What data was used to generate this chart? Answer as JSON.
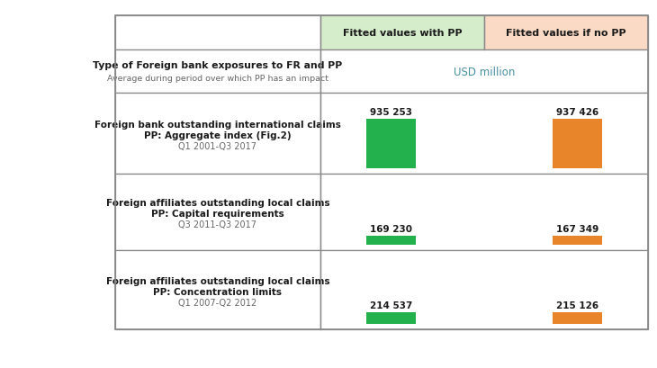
{
  "header_col1_bold": "Type of Foreign bank exposures to FR and PP",
  "header_col1_sub": "Average during period over which PP has an impact",
  "header_col2": "Fitted values with PP",
  "header_col3": "Fitted values if no PP",
  "subheader": "USD million",
  "rows": [
    {
      "label_bold1": "Foreign bank outstanding international claims",
      "label_bold2": "PP: Aggregate index (Fig.2)",
      "label_sub": "Q1 2001-Q3 2017",
      "val_with_pp": 935253,
      "val_no_pp": 937426,
      "val_with_pp_str": "935 253",
      "val_no_pp_str": "937 426"
    },
    {
      "label_bold1": "Foreign affiliates outstanding local claims",
      "label_bold2": "PP: Capital requirements",
      "label_sub": "Q3 2011-Q3 2017",
      "val_with_pp": 169230,
      "val_no_pp": 167349,
      "val_with_pp_str": "169 230",
      "val_no_pp_str": "167 349"
    },
    {
      "label_bold1": "Foreign affiliates outstanding local claims",
      "label_bold2": "PP: Concentration limits",
      "label_sub": "Q1 2007-Q2 2012",
      "val_with_pp": 214537,
      "val_no_pp": 215126,
      "val_with_pp_str": "214 537",
      "val_no_pp_str": "215 126"
    }
  ],
  "color_green": "#22B14C",
  "color_orange": "#E8842A",
  "color_header_green": "#D6EDCC",
  "color_header_orange": "#FAD9C5",
  "color_border": "#888888",
  "color_text_dark": "#1A1A1A",
  "color_text_sub": "#666666",
  "color_usd": "#4A90A4",
  "fig_width": 7.3,
  "fig_height": 4.1,
  "dpi": 100
}
